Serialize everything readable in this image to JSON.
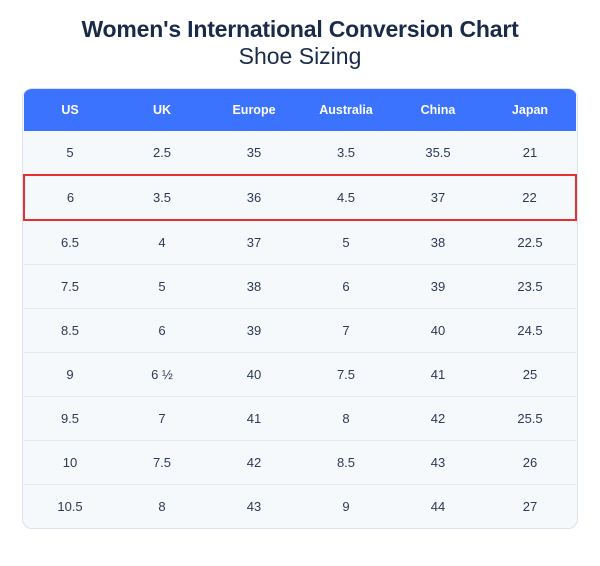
{
  "title": {
    "line1": "Women's International Conversion Chart",
    "line2": "Shoe Sizing"
  },
  "chart": {
    "type": "table",
    "header_bg_color": "#3b73ff",
    "header_text_color": "#ffffff",
    "body_bg_color": "#f6f9fc",
    "border_color": "#dbe3ef",
    "row_divider_color": "#e3e9f2",
    "highlight_border_color": "#e53030",
    "border_radius": 10,
    "header_fontsize": 12.5,
    "cell_fontsize": 13,
    "cell_text_color": "#2a3a55",
    "columns": [
      "US",
      "UK",
      "Europe",
      "Australia",
      "China",
      "Japan"
    ],
    "highlighted_row_index": 1,
    "rows": [
      [
        "5",
        "2.5",
        "35",
        "3.5",
        "35.5",
        "21"
      ],
      [
        "6",
        "3.5",
        "36",
        "4.5",
        "37",
        "22"
      ],
      [
        "6.5",
        "4",
        "37",
        "5",
        "38",
        "22.5"
      ],
      [
        "7.5",
        "5",
        "38",
        "6",
        "39",
        "23.5"
      ],
      [
        "8.5",
        "6",
        "39",
        "7",
        "40",
        "24.5"
      ],
      [
        "9",
        "6 ½",
        "40",
        "7.5",
        "41",
        "25"
      ],
      [
        "9.5",
        "7",
        "41",
        "8",
        "42",
        "25.5"
      ],
      [
        "10",
        "7.5",
        "42",
        "8.5",
        "43",
        "26"
      ],
      [
        "10.5",
        "8",
        "43",
        "9",
        "44",
        "27"
      ]
    ]
  }
}
